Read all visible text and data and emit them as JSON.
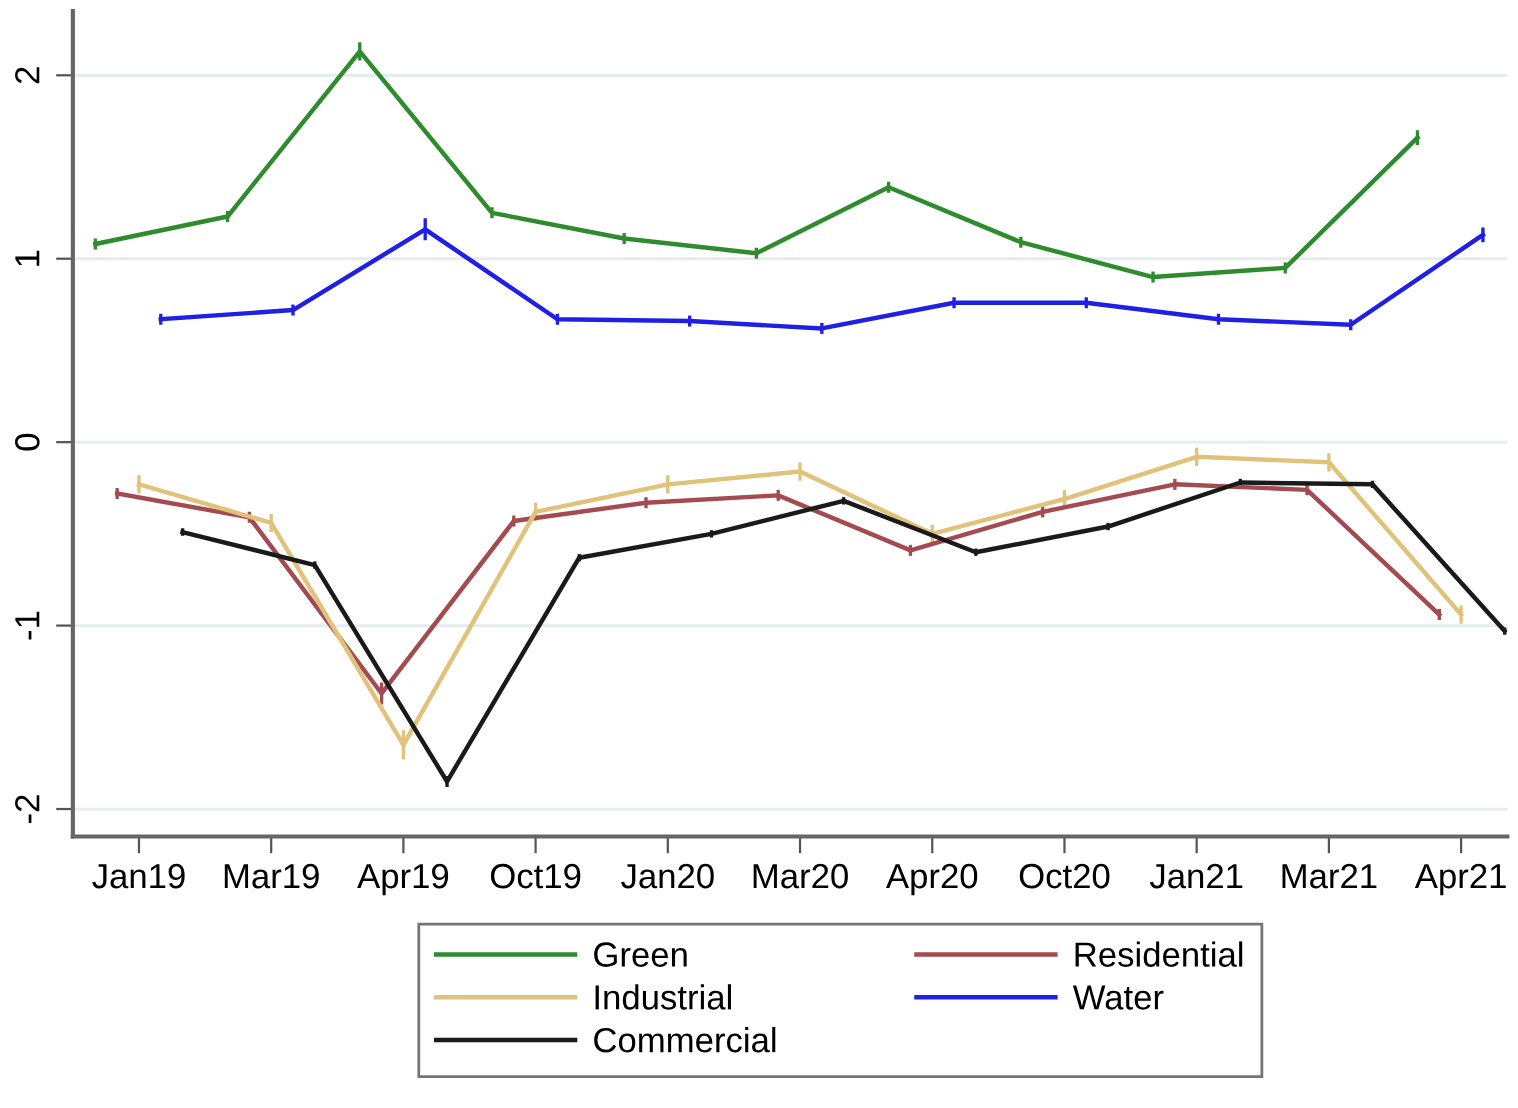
{
  "chart_data": {
    "type": "line",
    "categories": [
      "Jan19",
      "Mar19",
      "Apr19",
      "Oct19",
      "Jan20",
      "Mar20",
      "Apr20",
      "Oct20",
      "Jan21",
      "Mar21",
      "Apr21"
    ],
    "series": [
      {
        "name": "Green",
        "color": "#2e8b2e",
        "values": [
          1.08,
          1.23,
          2.13,
          1.25,
          1.11,
          1.03,
          1.39,
          1.09,
          0.9,
          0.95,
          1.66
        ],
        "errors": [
          0.03,
          0.03,
          0.05,
          0.03,
          0.03,
          0.03,
          0.03,
          0.03,
          0.03,
          0.03,
          0.04
        ]
      },
      {
        "name": "Residential",
        "color": "#a34b50",
        "values": [
          -0.28,
          -0.41,
          -1.37,
          -0.43,
          -0.33,
          -0.29,
          -0.59,
          -0.38,
          -0.23,
          -0.26,
          -0.94
        ],
        "errors": [
          0.03,
          0.03,
          0.06,
          0.03,
          0.03,
          0.03,
          0.03,
          0.03,
          0.03,
          0.03,
          0.03
        ]
      },
      {
        "name": "Industrial",
        "color": "#e0c27a",
        "values": [
          -0.23,
          -0.44,
          -1.65,
          -0.38,
          -0.23,
          -0.16,
          -0.5,
          -0.31,
          -0.08,
          -0.11,
          -0.94
        ],
        "errors": [
          0.05,
          0.05,
          0.08,
          0.05,
          0.05,
          0.05,
          0.05,
          0.05,
          0.05,
          0.05,
          0.05
        ]
      },
      {
        "name": "Water",
        "color": "#1f1fe6",
        "values": [
          0.67,
          0.72,
          1.16,
          0.67,
          0.66,
          0.62,
          0.76,
          0.76,
          0.67,
          0.64,
          1.13
        ],
        "errors": [
          0.03,
          0.03,
          0.06,
          0.03,
          0.03,
          0.03,
          0.03,
          0.03,
          0.03,
          0.03,
          0.04
        ]
      },
      {
        "name": "Commercial",
        "color": "#1a1a1a",
        "values": [
          -0.49,
          -0.67,
          -1.85,
          -0.63,
          -0.5,
          -0.32,
          -0.6,
          -0.46,
          -0.22,
          -0.23,
          -1.03
        ],
        "errors": [
          0.02,
          0.02,
          0.03,
          0.02,
          0.02,
          0.02,
          0.02,
          0.02,
          0.02,
          0.02,
          0.02
        ]
      }
    ],
    "ylim": [
      -2.15,
      2.35
    ],
    "yticks": [
      -2,
      -1,
      0,
      1,
      2
    ],
    "grid": "y",
    "legend": "bottom",
    "marker": "none",
    "line_style": "solid"
  }
}
